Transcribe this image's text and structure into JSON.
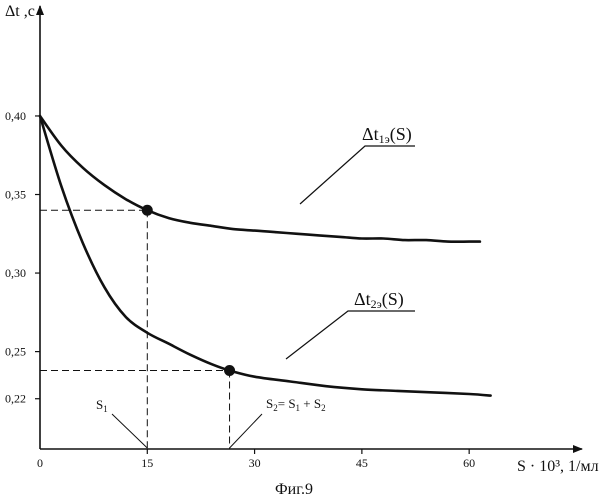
{
  "chart_data": {
    "type": "line",
    "ylabel": "Δt ,с",
    "xlabel": "S · 10³, 1/мл",
    "caption": "Фиг.9",
    "xlim": [
      0,
      72
    ],
    "ylim": [
      0.188,
      0.47
    ],
    "x_ticks": [
      {
        "value": 0,
        "label": "0"
      },
      {
        "value": 15,
        "label": "15"
      },
      {
        "value": 30,
        "label": "30"
      },
      {
        "value": 45,
        "label": "45"
      },
      {
        "value": 60,
        "label": "60"
      }
    ],
    "y_ticks": [
      {
        "value": 0.4,
        "label": "0,40"
      },
      {
        "value": 0.35,
        "label": "0,35"
      },
      {
        "value": 0.3,
        "label": "0,30"
      },
      {
        "value": 0.25,
        "label": "0,25"
      },
      {
        "value": 0.22,
        "label": "0,22"
      }
    ],
    "grid": false,
    "series": [
      {
        "name": "Δt1э(S)",
        "label_parts": {
          "pre": "Δt",
          "sub": "1э",
          "post": "(S)"
        },
        "x": [
          0,
          3,
          6,
          9,
          12,
          15,
          18,
          21,
          24,
          27,
          30,
          33,
          36,
          39,
          42,
          45,
          48,
          51,
          54,
          57,
          60,
          61.5
        ],
        "y": [
          0.4,
          0.381,
          0.367,
          0.356,
          0.347,
          0.34,
          0.335,
          0.332,
          0.33,
          0.328,
          0.327,
          0.326,
          0.325,
          0.324,
          0.323,
          0.322,
          0.322,
          0.321,
          0.321,
          0.32,
          0.32,
          0.32
        ],
        "marker": {
          "x": 15,
          "y": 0.34
        }
      },
      {
        "name": "Δt2э(S)",
        "label_parts": {
          "pre": "Δt",
          "sub": "2э",
          "post": "(S)"
        },
        "x": [
          0,
          3,
          6,
          9,
          12,
          15,
          18,
          21,
          24,
          26.5,
          30,
          35,
          40,
          45,
          50,
          55,
          60,
          63
        ],
        "y": [
          0.4,
          0.355,
          0.319,
          0.291,
          0.272,
          0.262,
          0.255,
          0.248,
          0.242,
          0.238,
          0.234,
          0.231,
          0.228,
          0.226,
          0.225,
          0.224,
          0.223,
          0.222
        ],
        "marker": {
          "x": 26.5,
          "y": 0.238
        }
      }
    ],
    "annotations": {
      "s1": {
        "x": 15,
        "text_pre": "S",
        "text_sub": "1"
      },
      "s2": {
        "x": 26.5,
        "parts": [
          {
            "t": "S",
            "sub": false
          },
          {
            "t": "2",
            "sub": true
          },
          {
            "t": "= S",
            "sub": false
          },
          {
            "t": "1",
            "sub": true
          },
          {
            "t": " + S",
            "sub": false
          },
          {
            "t": "2",
            "sub": true
          }
        ]
      }
    }
  }
}
